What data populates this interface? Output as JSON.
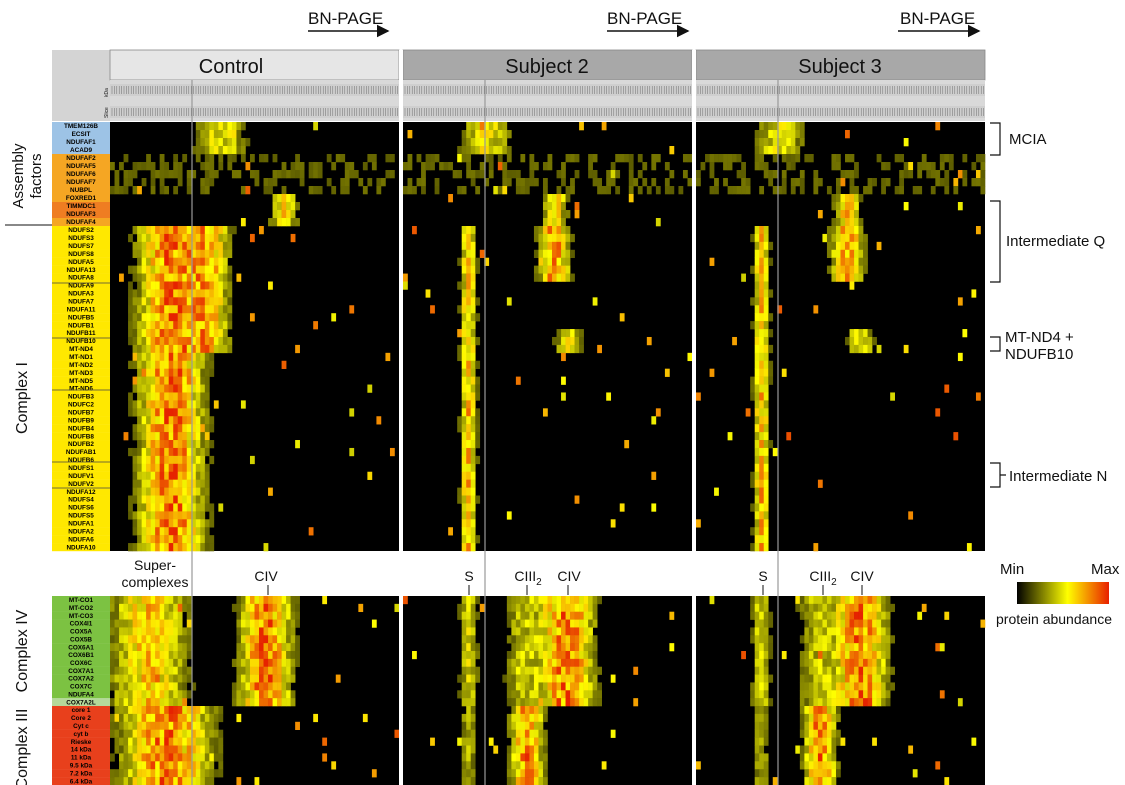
{
  "chart_data": {
    "type": "heatmap",
    "header": {
      "bn_page": "BN-PAGE",
      "panels": [
        "Control",
        "Subject 2",
        "Subject 3"
      ],
      "row_kda": "kDa",
      "row_slice": "Slice"
    },
    "groups": {
      "assembly": "Assembly factors",
      "complex1": "Complex I",
      "complex4": "Complex IV",
      "complex3": "Complex III"
    },
    "proteins": {
      "assembly_blue": [
        "TMEM126B",
        "ECSIT",
        "NDUFAF1",
        "ACAD9"
      ],
      "assembly_orange": [
        "NDUFAF2",
        "NDUFAF5",
        "NDUFAF6",
        "NDUFAF7",
        "NUBPL",
        "FOXRED1",
        "TIMMDC1",
        "NDUFAF3",
        "NDUFAF4"
      ],
      "complex1": [
        "NDUFS2",
        "NDUFS3",
        "NDUFS7",
        "NDUFS8",
        "NDUFA5",
        "NDUFA13",
        "NDUFA8",
        "NDUFA9",
        "NDUFA3",
        "NDUFA7",
        "NDUFA11",
        "NDUFB5",
        "NDUFB1",
        "NDUFB11",
        "NDUFB10",
        "MT-ND4",
        "MT-ND1",
        "MT-ND2",
        "MT-ND3",
        "MT-ND5",
        "MT-ND6",
        "NDUFB3",
        "NDUFC2",
        "NDUFB7",
        "NDUFB9",
        "NDUFB4",
        "NDUFB8",
        "NDUFB2",
        "NDUFAB1",
        "NDUFB6",
        "NDUFS1",
        "NDUFV1",
        "NDUFV2",
        "NDUFA12",
        "NDUFS4",
        "NDUFS6",
        "NDUFS5",
        "NDUFA1",
        "NDUFA2",
        "NDUFA6",
        "NDUFA10"
      ],
      "complex4": [
        "MT-CO1",
        "MT-CO2",
        "MT-CO3",
        "COX4I1",
        "COX5A",
        "COX5B",
        "COX6A1",
        "COX6B1",
        "COX6C",
        "COX7A1",
        "COX7A2",
        "COX7C",
        "NDUFA4",
        "COX7A2L"
      ],
      "complex3": [
        "core 1",
        "Core 2",
        "Cyt c",
        "cyt b",
        "Rieske",
        "14 kDa",
        "11 kDa",
        "9.5 kDa",
        "7.2 kDa",
        "6.4 kDa"
      ]
    },
    "annotations": {
      "mcia": "MCIA",
      "intermediate_q": "Intermediate Q",
      "nd4_line1": "MT-ND4 +",
      "nd4_line2": "NDUFB10",
      "intermediate_n": "Intermediate N"
    },
    "band_labels": {
      "supercomplexes_1": "Super-",
      "supercomplexes_2": "complexes",
      "civ": "CIV",
      "s": "S",
      "ciii": "CIII",
      "ciii_sub": "2"
    },
    "legend": {
      "min": "Min",
      "max": "Max",
      "caption": "protein abundance",
      "colors": [
        "#000000",
        "#ffff00",
        "#e82000"
      ]
    },
    "colors": {
      "assembly_blue": "#9dc3e6",
      "assembly_orange": "#f5a623",
      "assembly_dark_orange": "#ef7d22",
      "complex1": "#ffe800",
      "complex4": "#7cc242",
      "complex4_light": "#b5d99a",
      "complex3": "#e8401c"
    }
  }
}
